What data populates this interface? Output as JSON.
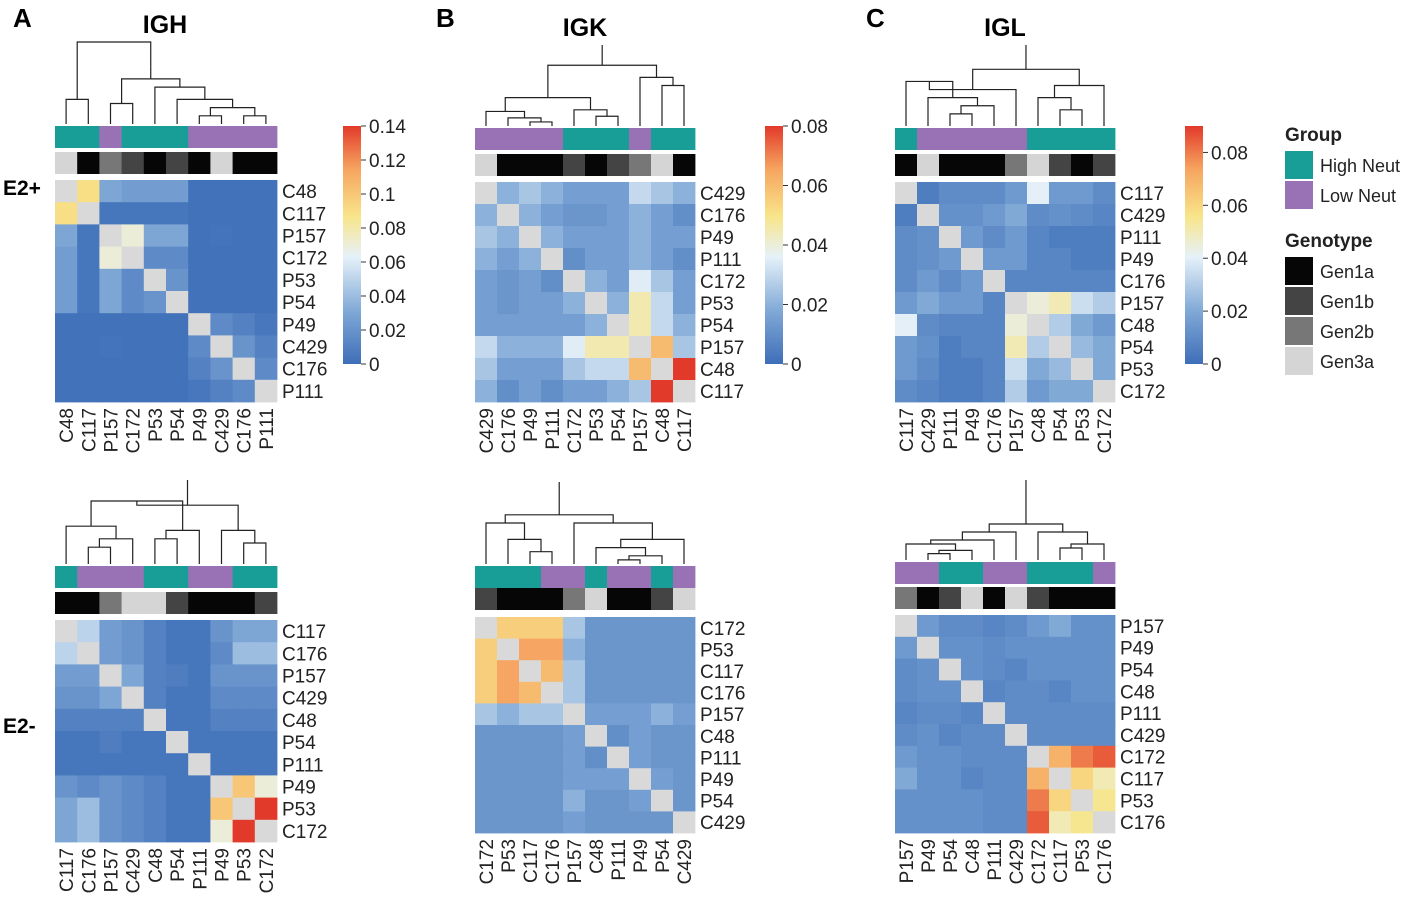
{
  "colors": {
    "high_neut": "#189E96",
    "low_neut": "#9972B6",
    "Gen1a": "#060606",
    "Gen1b": "#444444",
    "Gen2b": "#777777",
    "Gen3a": "#D5D5D5",
    "diagonal": "#D9D9D9",
    "scale": [
      "#3E6EB8",
      "#7FA8D6",
      "#E6F1F9",
      "#F8E58A",
      "#F6A460",
      "#E23A2A"
    ]
  },
  "legend": {
    "group_title": "Group",
    "group_items": [
      {
        "label": "High Neut",
        "key": "H"
      },
      {
        "label": "Low Neut",
        "key": "L"
      }
    ],
    "genotype_title": "Genotype",
    "genotype_items": [
      {
        "label": "Gen1a",
        "key": "Gen1a"
      },
      {
        "label": "Gen1b",
        "key": "Gen1b"
      },
      {
        "label": "Gen2b",
        "key": "Gen2b"
      },
      {
        "label": "Gen3a",
        "key": "Gen3a"
      }
    ]
  },
  "row_labels": [
    "E2+",
    "E2-"
  ],
  "chart_data": [
    {
      "type": "heatmap",
      "panel_letter": "A",
      "title": "IGH",
      "condition": "E2+",
      "colorbar": {
        "min": 0,
        "max": 0.14,
        "ticks": [
          "0.14",
          "0.12",
          "0.1",
          "0.08",
          "0.06",
          "0.04",
          "0.02",
          "0"
        ]
      },
      "labels": [
        "C48",
        "C117",
        "P157",
        "C172",
        "P53",
        "P54",
        "P49",
        "C429",
        "C176",
        "P111"
      ],
      "groups": [
        "H",
        "H",
        "L",
        "H",
        "H",
        "H",
        "L",
        "L",
        "L",
        "L"
      ],
      "genotypes": [
        "Gen3a",
        "Gen1a",
        "Gen2b",
        "Gen1b",
        "Gen1a",
        "Gen1b",
        "Gen1a",
        "Gen3a",
        "Gen1a",
        "Gen1a"
      ],
      "values": [
        [
          0,
          0.09,
          0.03,
          0.025,
          0.025,
          0.025,
          0.002,
          0.002,
          0.002,
          0.002
        ],
        [
          0.09,
          0,
          0.004,
          0.004,
          0.004,
          0.004,
          0.002,
          0.002,
          0.002,
          0.002
        ],
        [
          0.03,
          0.004,
          0,
          0.07,
          0.03,
          0.03,
          0.002,
          0.003,
          0.002,
          0.002
        ],
        [
          0.025,
          0.004,
          0.07,
          0,
          0.015,
          0.015,
          0.002,
          0.002,
          0.002,
          0.002
        ],
        [
          0.025,
          0.004,
          0.03,
          0.015,
          0,
          0.02,
          0.002,
          0.002,
          0.002,
          0.002
        ],
        [
          0.025,
          0.004,
          0.03,
          0.015,
          0.02,
          0,
          0.002,
          0.002,
          0.002,
          0.002
        ],
        [
          0.002,
          0.002,
          0.002,
          0.002,
          0.002,
          0.002,
          0,
          0.015,
          0.01,
          0.005
        ],
        [
          0.002,
          0.002,
          0.003,
          0.002,
          0.002,
          0.002,
          0.015,
          0,
          0.02,
          0.01
        ],
        [
          0.002,
          0.002,
          0.002,
          0.002,
          0.002,
          0.002,
          0.01,
          0.02,
          0,
          0.015
        ],
        [
          0.002,
          0.002,
          0.002,
          0.002,
          0.002,
          0.002,
          0.005,
          0.01,
          0.015,
          0
        ]
      ]
    },
    {
      "type": "heatmap",
      "panel_letter": "B",
      "title": "IGK",
      "condition": "E2+",
      "colorbar": {
        "min": 0,
        "max": 0.08,
        "ticks": [
          "0.08",
          "0.06",
          "0.04",
          "0.02",
          "0"
        ]
      },
      "labels": [
        "C429",
        "C176",
        "P49",
        "P111",
        "C172",
        "P53",
        "P54",
        "P157",
        "C48",
        "C117"
      ],
      "groups": [
        "L",
        "L",
        "L",
        "L",
        "H",
        "H",
        "H",
        "L",
        "H",
        "H"
      ],
      "genotypes": [
        "Gen3a",
        "Gen1a",
        "Gen1a",
        "Gen1a",
        "Gen1b",
        "Gen1a",
        "Gen1b",
        "Gen2b",
        "Gen3a",
        "Gen1a"
      ],
      "values": [
        [
          0,
          0.02,
          0.025,
          0.02,
          0.015,
          0.015,
          0.015,
          0.03,
          0.025,
          0.02
        ],
        [
          0.02,
          0,
          0.02,
          0.015,
          0.012,
          0.012,
          0.015,
          0.02,
          0.015,
          0.01
        ],
        [
          0.025,
          0.02,
          0,
          0.02,
          0.015,
          0.015,
          0.015,
          0.02,
          0.015,
          0.015
        ],
        [
          0.02,
          0.015,
          0.02,
          0,
          0.01,
          0.015,
          0.015,
          0.02,
          0.015,
          0.01
        ],
        [
          0.015,
          0.012,
          0.015,
          0.01,
          0,
          0.02,
          0.015,
          0.035,
          0.025,
          0.015
        ],
        [
          0.015,
          0.012,
          0.015,
          0.015,
          0.02,
          0,
          0.02,
          0.045,
          0.03,
          0.015
        ],
        [
          0.015,
          0.015,
          0.015,
          0.015,
          0.015,
          0.02,
          0,
          0.045,
          0.03,
          0.02
        ],
        [
          0.03,
          0.02,
          0.02,
          0.02,
          0.035,
          0.045,
          0.045,
          0,
          0.06,
          0.025
        ],
        [
          0.025,
          0.015,
          0.015,
          0.015,
          0.025,
          0.03,
          0.03,
          0.06,
          0,
          0.08
        ],
        [
          0.02,
          0.01,
          0.015,
          0.01,
          0.015,
          0.015,
          0.02,
          0.025,
          0.08,
          0
        ]
      ]
    },
    {
      "type": "heatmap",
      "panel_letter": "C",
      "title": "IGL",
      "condition": "E2+",
      "colorbar": {
        "min": 0,
        "max": 0.09,
        "ticks": [
          "0.08",
          "0.06",
          "0.04",
          "0.02",
          "0"
        ]
      },
      "labels": [
        "C117",
        "C429",
        "P111",
        "P49",
        "C176",
        "P157",
        "C48",
        "P54",
        "P53",
        "C172"
      ],
      "groups": [
        "H",
        "L",
        "L",
        "L",
        "L",
        "L",
        "H",
        "H",
        "H",
        "H"
      ],
      "genotypes": [
        "Gen1a",
        "Gen3a",
        "Gen1a",
        "Gen1a",
        "Gen1a",
        "Gen2b",
        "Gen3a",
        "Gen1b",
        "Gen1a",
        "Gen1b"
      ],
      "values": [
        [
          0,
          0.005,
          0.01,
          0.01,
          0.01,
          0.015,
          0.04,
          0.015,
          0.015,
          0.01
        ],
        [
          0.005,
          0,
          0.012,
          0.012,
          0.015,
          0.02,
          0.01,
          0.012,
          0.01,
          0.008
        ],
        [
          0.01,
          0.012,
          0,
          0.015,
          0.01,
          0.015,
          0.008,
          0.005,
          0.005,
          0.005
        ],
        [
          0.01,
          0.012,
          0.015,
          0,
          0.015,
          0.015,
          0.008,
          0.008,
          0.005,
          0.005
        ],
        [
          0.01,
          0.015,
          0.01,
          0.015,
          0,
          0.008,
          0.008,
          0.008,
          0.008,
          0.008
        ],
        [
          0.015,
          0.02,
          0.015,
          0.015,
          0.008,
          0,
          0.045,
          0.05,
          0.035,
          0.03
        ],
        [
          0.04,
          0.01,
          0.008,
          0.008,
          0.008,
          0.045,
          0,
          0.03,
          0.02,
          0.015
        ],
        [
          0.015,
          0.012,
          0.005,
          0.008,
          0.008,
          0.05,
          0.03,
          0,
          0.025,
          0.02
        ],
        [
          0.015,
          0.01,
          0.005,
          0.005,
          0.008,
          0.035,
          0.02,
          0.025,
          0,
          0.02
        ],
        [
          0.01,
          0.008,
          0.005,
          0.005,
          0.008,
          0.03,
          0.015,
          0.02,
          0.02,
          0
        ]
      ]
    },
    {
      "type": "heatmap",
      "panel_letter": "",
      "title": "IGH",
      "condition": "E2-",
      "colorbar": {
        "min": 0,
        "max": 0.14
      },
      "labels": [
        "C117",
        "C176",
        "P157",
        "C429",
        "C48",
        "P54",
        "P111",
        "P49",
        "P53",
        "C172"
      ],
      "groups": [
        "H",
        "L",
        "L",
        "L",
        "H",
        "H",
        "L",
        "L",
        "H",
        "H"
      ],
      "genotypes": [
        "Gen1a",
        "Gen1a",
        "Gen2b",
        "Gen3a",
        "Gen3a",
        "Gen1b",
        "Gen1a",
        "Gen1a",
        "Gen1a",
        "Gen1b"
      ],
      "values": [
        [
          0,
          0.05,
          0.025,
          0.02,
          0.01,
          0.004,
          0.004,
          0.02,
          0.03,
          0.03
        ],
        [
          0.05,
          0,
          0.025,
          0.02,
          0.01,
          0.004,
          0.004,
          0.015,
          0.04,
          0.04
        ],
        [
          0.025,
          0.025,
          0,
          0.03,
          0.01,
          0.008,
          0.004,
          0.02,
          0.02,
          0.02
        ],
        [
          0.02,
          0.02,
          0.03,
          0,
          0.01,
          0.004,
          0.004,
          0.015,
          0.015,
          0.015
        ],
        [
          0.01,
          0.01,
          0.01,
          0.01,
          0,
          0.004,
          0.004,
          0.01,
          0.01,
          0.01
        ],
        [
          0.004,
          0.004,
          0.008,
          0.004,
          0.004,
          0,
          0.004,
          0.004,
          0.004,
          0.004
        ],
        [
          0.004,
          0.004,
          0.004,
          0.004,
          0.004,
          0.004,
          0,
          0.004,
          0.004,
          0.004
        ],
        [
          0.02,
          0.015,
          0.02,
          0.015,
          0.01,
          0.004,
          0.004,
          0,
          0.1,
          0.07
        ],
        [
          0.03,
          0.04,
          0.02,
          0.015,
          0.01,
          0.004,
          0.004,
          0.1,
          0,
          0.14
        ],
        [
          0.03,
          0.04,
          0.02,
          0.015,
          0.01,
          0.004,
          0.004,
          0.07,
          0.14,
          0
        ]
      ]
    },
    {
      "type": "heatmap",
      "panel_letter": "",
      "title": "IGK",
      "condition": "E2-",
      "colorbar": {
        "min": 0,
        "max": 0.08
      },
      "labels": [
        "C172",
        "P53",
        "C117",
        "C176",
        "P157",
        "C48",
        "P111",
        "P49",
        "P54",
        "C429"
      ],
      "groups": [
        "H",
        "H",
        "H",
        "L",
        "L",
        "H",
        "L",
        "L",
        "H",
        "L"
      ],
      "genotypes": [
        "Gen1b",
        "Gen1a",
        "Gen1a",
        "Gen1a",
        "Gen2b",
        "Gen3a",
        "Gen1a",
        "Gen1a",
        "Gen1b",
        "Gen3a"
      ],
      "values": [
        [
          0,
          0.055,
          0.055,
          0.055,
          0.025,
          0.012,
          0.012,
          0.012,
          0.012,
          0.012
        ],
        [
          0.055,
          0,
          0.065,
          0.065,
          0.02,
          0.012,
          0.012,
          0.012,
          0.012,
          0.012
        ],
        [
          0.055,
          0.065,
          0,
          0.06,
          0.025,
          0.012,
          0.012,
          0.012,
          0.012,
          0.012
        ],
        [
          0.055,
          0.065,
          0.06,
          0,
          0.025,
          0.012,
          0.012,
          0.012,
          0.012,
          0.012
        ],
        [
          0.025,
          0.02,
          0.025,
          0.025,
          0,
          0.015,
          0.015,
          0.015,
          0.02,
          0.015
        ],
        [
          0.012,
          0.012,
          0.012,
          0.012,
          0.015,
          0,
          0.01,
          0.015,
          0.012,
          0.012
        ],
        [
          0.012,
          0.012,
          0.012,
          0.012,
          0.015,
          0.01,
          0,
          0.015,
          0.012,
          0.012
        ],
        [
          0.012,
          0.012,
          0.012,
          0.012,
          0.015,
          0.015,
          0.015,
          0,
          0.015,
          0.012
        ],
        [
          0.012,
          0.012,
          0.012,
          0.012,
          0.02,
          0.012,
          0.012,
          0.015,
          0,
          0.012
        ],
        [
          0.012,
          0.012,
          0.012,
          0.012,
          0.015,
          0.012,
          0.012,
          0.012,
          0.012,
          0
        ]
      ]
    },
    {
      "type": "heatmap",
      "panel_letter": "",
      "title": "IGL",
      "condition": "E2-",
      "colorbar": {
        "min": 0,
        "max": 0.09
      },
      "labels": [
        "P157",
        "P49",
        "P54",
        "C48",
        "P111",
        "C429",
        "C172",
        "C117",
        "P53",
        "C176"
      ],
      "groups": [
        "L",
        "L",
        "H",
        "H",
        "L",
        "L",
        "H",
        "H",
        "H",
        "L"
      ],
      "genotypes": [
        "Gen2b",
        "Gen1a",
        "Gen1b",
        "Gen3a",
        "Gen1a",
        "Gen3a",
        "Gen1b",
        "Gen1a",
        "Gen1a",
        "Gen1a"
      ],
      "values": [
        [
          0,
          0.015,
          0.01,
          0.01,
          0.008,
          0.01,
          0.015,
          0.02,
          0.012,
          0.012
        ],
        [
          0.015,
          0,
          0.012,
          0.012,
          0.01,
          0.012,
          0.012,
          0.012,
          0.012,
          0.012
        ],
        [
          0.01,
          0.012,
          0,
          0.012,
          0.01,
          0.008,
          0.012,
          0.012,
          0.012,
          0.012
        ],
        [
          0.01,
          0.012,
          0.012,
          0,
          0.008,
          0.01,
          0.01,
          0.008,
          0.012,
          0.012
        ],
        [
          0.008,
          0.01,
          0.01,
          0.008,
          0,
          0.01,
          0.01,
          0.01,
          0.01,
          0.01
        ],
        [
          0.01,
          0.012,
          0.008,
          0.01,
          0.01,
          0,
          0.01,
          0.01,
          0.01,
          0.01
        ],
        [
          0.015,
          0.012,
          0.012,
          0.01,
          0.01,
          0.01,
          0,
          0.07,
          0.08,
          0.085
        ],
        [
          0.02,
          0.012,
          0.012,
          0.008,
          0.01,
          0.01,
          0.07,
          0,
          0.06,
          0.05
        ],
        [
          0.012,
          0.012,
          0.012,
          0.012,
          0.01,
          0.01,
          0.08,
          0.06,
          0,
          0.055
        ],
        [
          0.012,
          0.012,
          0.012,
          0.012,
          0.01,
          0.01,
          0.085,
          0.05,
          0.055,
          0
        ]
      ]
    }
  ]
}
